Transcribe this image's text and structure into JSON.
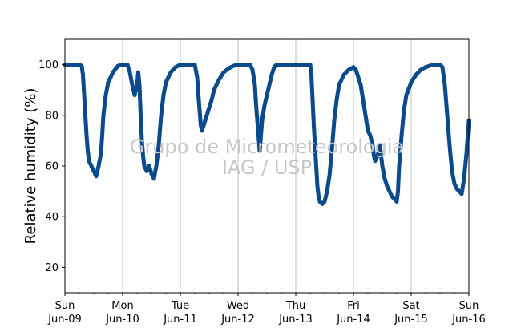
{
  "watermark": {
    "line1": "Grupo de Micrometeorologia",
    "line2": "IAG / USP"
  },
  "chart_data": {
    "type": "scatter",
    "title": "",
    "xlabel": "",
    "ylabel": "Relative humidity (%)",
    "xlim": [
      "2024-06-09T00:00",
      "2024-06-16T00:00"
    ],
    "ylim": [
      10,
      110
    ],
    "y_ticks": [
      20,
      40,
      60,
      80,
      100
    ],
    "x_ticks": [
      {
        "date": "2024-06-09",
        "day": "Sun",
        "label": "Jun-09"
      },
      {
        "date": "2024-06-10",
        "day": "Mon",
        "label": "Jun-10"
      },
      {
        "date": "2024-06-11",
        "day": "Tue",
        "label": "Jun-11"
      },
      {
        "date": "2024-06-12",
        "day": "Wed",
        "label": "Jun-12"
      },
      {
        "date": "2024-06-13",
        "day": "Thu",
        "label": "Jun-13"
      },
      {
        "date": "2024-06-14",
        "day": "Fri",
        "label": "Jun-14"
      },
      {
        "date": "2024-06-15",
        "day": "Sat",
        "label": "Jun-15"
      },
      {
        "date": "2024-06-16",
        "day": "Sun",
        "label": "Jun-16"
      }
    ],
    "grid": "vertical at day ticks",
    "marker_color": "#0b4a8b",
    "series": [
      {
        "name": "",
        "points": [
          [
            "2024-06-09T00:00",
            100
          ],
          [
            "2024-06-09T03:00",
            100
          ],
          [
            "2024-06-09T06:00",
            100
          ],
          [
            "2024-06-09T07:00",
            99.5
          ],
          [
            "2024-06-09T07:30",
            96
          ],
          [
            "2024-06-09T08:00",
            88
          ],
          [
            "2024-06-09T08:30",
            80
          ],
          [
            "2024-06-09T09:00",
            72
          ],
          [
            "2024-06-09T09:30",
            66
          ],
          [
            "2024-06-09T10:00",
            62
          ],
          [
            "2024-06-09T11:00",
            60
          ],
          [
            "2024-06-09T12:00",
            58
          ],
          [
            "2024-06-09T13:00",
            56
          ],
          [
            "2024-06-09T14:00",
            60
          ],
          [
            "2024-06-09T15:00",
            65
          ],
          [
            "2024-06-09T15:30",
            72
          ],
          [
            "2024-06-09T16:00",
            80
          ],
          [
            "2024-06-09T17:00",
            88
          ],
          [
            "2024-06-09T18:00",
            93
          ],
          [
            "2024-06-09T20:00",
            97
          ],
          [
            "2024-06-09T22:00",
            99.5
          ],
          [
            "2024-06-10T00:00",
            100
          ],
          [
            "2024-06-10T02:00",
            100
          ],
          [
            "2024-06-10T03:00",
            97
          ],
          [
            "2024-06-10T04:00",
            92
          ],
          [
            "2024-06-10T05:00",
            88
          ],
          [
            "2024-06-10T06:00",
            92
          ],
          [
            "2024-06-10T06:30",
            97
          ],
          [
            "2024-06-10T07:00",
            92
          ],
          [
            "2024-06-10T07:30",
            80
          ],
          [
            "2024-06-10T08:00",
            70
          ],
          [
            "2024-06-10T08:30",
            64
          ],
          [
            "2024-06-10T09:00",
            60
          ],
          [
            "2024-06-10T10:00",
            58
          ],
          [
            "2024-06-10T11:00",
            60
          ],
          [
            "2024-06-10T12:00",
            57
          ],
          [
            "2024-06-10T13:00",
            55
          ],
          [
            "2024-06-10T14:00",
            60
          ],
          [
            "2024-06-10T15:00",
            68
          ],
          [
            "2024-06-10T16:00",
            80
          ],
          [
            "2024-06-10T17:00",
            88
          ],
          [
            "2024-06-10T18:00",
            93
          ],
          [
            "2024-06-10T20:00",
            97
          ],
          [
            "2024-06-10T22:00",
            99
          ],
          [
            "2024-06-11T00:00",
            100
          ],
          [
            "2024-06-11T04:00",
            100
          ],
          [
            "2024-06-11T06:00",
            100
          ],
          [
            "2024-06-11T07:00",
            95
          ],
          [
            "2024-06-11T07:30",
            88
          ],
          [
            "2024-06-11T08:00",
            82
          ],
          [
            "2024-06-11T08:30",
            76
          ],
          [
            "2024-06-11T09:00",
            74
          ],
          [
            "2024-06-11T10:00",
            77
          ],
          [
            "2024-06-11T11:00",
            80
          ],
          [
            "2024-06-11T12:00",
            83
          ],
          [
            "2024-06-11T13:00",
            86
          ],
          [
            "2024-06-11T14:00",
            90
          ],
          [
            "2024-06-11T15:00",
            92
          ],
          [
            "2024-06-11T16:00",
            94
          ],
          [
            "2024-06-11T18:00",
            97
          ],
          [
            "2024-06-11T20:00",
            98.5
          ],
          [
            "2024-06-11T22:00",
            99.5
          ],
          [
            "2024-06-12T00:00",
            100
          ],
          [
            "2024-06-12T03:00",
            100
          ],
          [
            "2024-06-12T05:00",
            100
          ],
          [
            "2024-06-12T06:00",
            98
          ],
          [
            "2024-06-12T07:00",
            92
          ],
          [
            "2024-06-12T07:30",
            84
          ],
          [
            "2024-06-12T08:00",
            78
          ],
          [
            "2024-06-12T08:30",
            72
          ],
          [
            "2024-06-12T09:00",
            66
          ],
          [
            "2024-06-12T09:30",
            72
          ],
          [
            "2024-06-12T10:00",
            78
          ],
          [
            "2024-06-12T11:00",
            84
          ],
          [
            "2024-06-12T12:00",
            88
          ],
          [
            "2024-06-12T13:00",
            92
          ],
          [
            "2024-06-12T14:00",
            96
          ],
          [
            "2024-06-12T15:00",
            99
          ],
          [
            "2024-06-12T16:00",
            100
          ],
          [
            "2024-06-12T20:00",
            100
          ],
          [
            "2024-06-13T00:00",
            100
          ],
          [
            "2024-06-13T04:00",
            100
          ],
          [
            "2024-06-13T06:00",
            100
          ],
          [
            "2024-06-13T06:30",
            96
          ],
          [
            "2024-06-13T07:00",
            86
          ],
          [
            "2024-06-13T07:30",
            76
          ],
          [
            "2024-06-13T08:00",
            68
          ],
          [
            "2024-06-13T08:30",
            60
          ],
          [
            "2024-06-13T09:00",
            52
          ],
          [
            "2024-06-13T09:30",
            48
          ],
          [
            "2024-06-13T10:00",
            46
          ],
          [
            "2024-06-13T11:00",
            45
          ],
          [
            "2024-06-13T12:00",
            46
          ],
          [
            "2024-06-13T13:00",
            50
          ],
          [
            "2024-06-13T14:00",
            56
          ],
          [
            "2024-06-13T15:00",
            66
          ],
          [
            "2024-06-13T16:00",
            78
          ],
          [
            "2024-06-13T17:00",
            86
          ],
          [
            "2024-06-13T18:00",
            92
          ],
          [
            "2024-06-13T20:00",
            96
          ],
          [
            "2024-06-13T22:00",
            98
          ],
          [
            "2024-06-14T00:00",
            99
          ],
          [
            "2024-06-14T01:00",
            98
          ],
          [
            "2024-06-14T02:00",
            95
          ],
          [
            "2024-06-14T03:00",
            92
          ],
          [
            "2024-06-14T04:00",
            86
          ],
          [
            "2024-06-14T05:00",
            80
          ],
          [
            "2024-06-14T06:00",
            74
          ],
          [
            "2024-06-14T07:00",
            72
          ],
          [
            "2024-06-14T08:00",
            68
          ],
          [
            "2024-06-14T08:30",
            64
          ],
          [
            "2024-06-14T09:00",
            62
          ],
          [
            "2024-06-14T10:00",
            64
          ],
          [
            "2024-06-14T11:00",
            68
          ],
          [
            "2024-06-14T12:00",
            60
          ],
          [
            "2024-06-14T13:00",
            55
          ],
          [
            "2024-06-14T14:00",
            52
          ],
          [
            "2024-06-14T15:00",
            50
          ],
          [
            "2024-06-14T16:00",
            48
          ],
          [
            "2024-06-14T17:00",
            47
          ],
          [
            "2024-06-14T18:00",
            46
          ],
          [
            "2024-06-14T18:30",
            50
          ],
          [
            "2024-06-14T19:00",
            60
          ],
          [
            "2024-06-14T20:00",
            72
          ],
          [
            "2024-06-14T21:00",
            82
          ],
          [
            "2024-06-14T22:00",
            88
          ],
          [
            "2024-06-15T00:00",
            93
          ],
          [
            "2024-06-15T02:00",
            96
          ],
          [
            "2024-06-15T04:00",
            98
          ],
          [
            "2024-06-15T06:00",
            99
          ],
          [
            "2024-06-15T09:00",
            100
          ],
          [
            "2024-06-15T12:00",
            100
          ],
          [
            "2024-06-15T13:00",
            99
          ],
          [
            "2024-06-15T14:00",
            92
          ],
          [
            "2024-06-15T15:00",
            80
          ],
          [
            "2024-06-15T16:00",
            68
          ],
          [
            "2024-06-15T17:00",
            58
          ],
          [
            "2024-06-15T18:00",
            53
          ],
          [
            "2024-06-15T19:00",
            51
          ],
          [
            "2024-06-15T20:00",
            50
          ],
          [
            "2024-06-15T21:00",
            49
          ],
          [
            "2024-06-15T22:00",
            55
          ],
          [
            "2024-06-15T23:00",
            65
          ],
          [
            "2024-06-16T00:00",
            78
          ]
        ]
      }
    ]
  }
}
